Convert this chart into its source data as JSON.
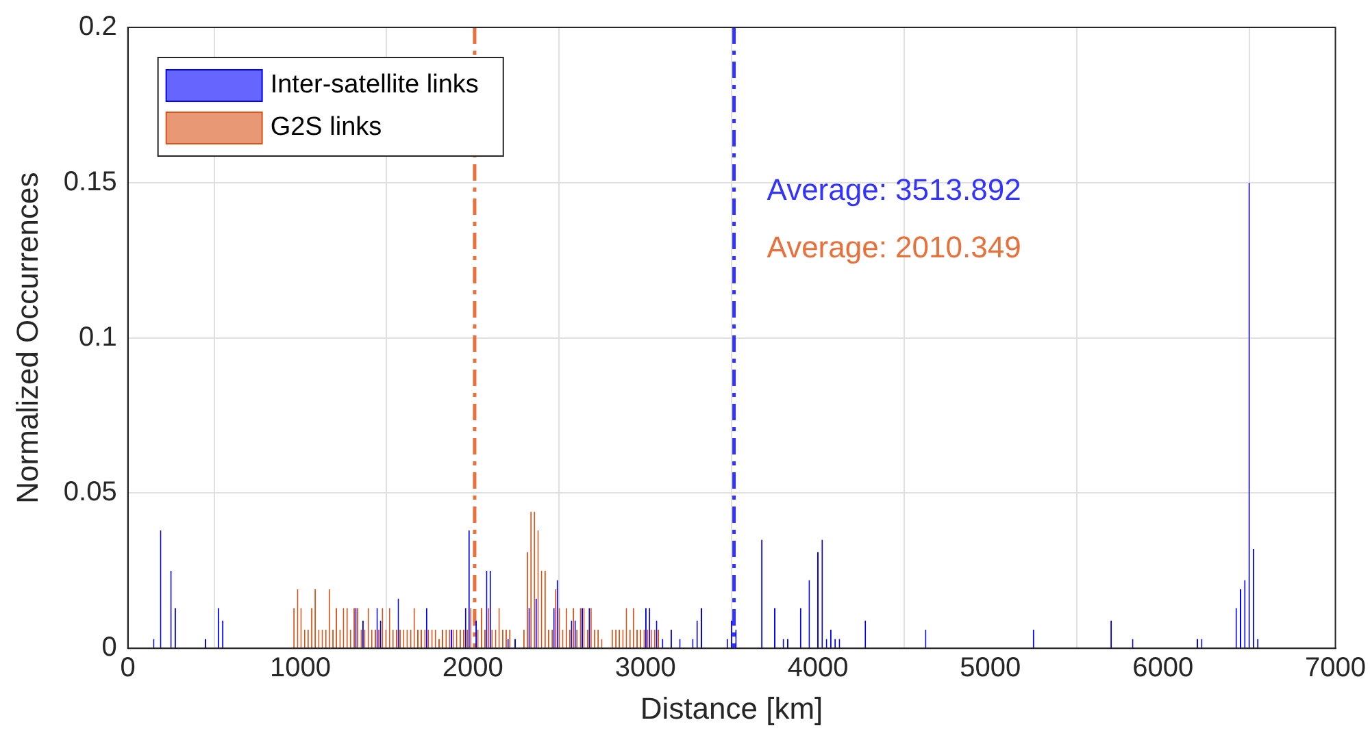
{
  "chart_data": {
    "type": "bar",
    "xlabel": "Distance [km]",
    "ylabel": "Normalized Occurrences",
    "xlim": [
      0,
      7000
    ],
    "xticks": [
      0,
      1000,
      2000,
      3000,
      4000,
      5000,
      6000,
      7000
    ],
    "ylim": [
      0,
      0.2
    ],
    "yticks": [
      0,
      0.05,
      0.1,
      0.15,
      0.2
    ],
    "grid": true,
    "legend": "top left",
    "series": [
      {
        "name": "Inter-satellite links",
        "color": "#0000ff",
        "x": [
          150,
          190,
          250,
          275,
          450,
          525,
          550,
          1322,
          1363,
          1445,
          1465,
          1568,
          1732,
          1876,
          1958,
          1978,
          2019,
          2080,
          2101,
          2204,
          2245,
          2326,
          2367,
          2470,
          2490,
          2572,
          2593,
          2634,
          2675,
          3003,
          3024,
          3065,
          3100,
          3150,
          3200,
          3275,
          3300,
          3325,
          3475,
          3500,
          3525,
          3675,
          3750,
          3800,
          3825,
          3900,
          3950,
          4000,
          4025,
          4050,
          4075,
          4100,
          4125,
          4275,
          4625,
          5250,
          5700,
          5825,
          6200,
          6225,
          6425,
          6450,
          6475,
          6500,
          6525,
          6550
        ],
        "values": [
          0.003,
          0.038,
          0.025,
          0.013,
          0.003,
          0.013,
          0.009,
          0.013,
          0.009,
          0.013,
          0.009,
          0.016,
          0.013,
          0.006,
          0.013,
          0.038,
          0.009,
          0.025,
          0.025,
          0.003,
          0.003,
          0.013,
          0.016,
          0.013,
          0.022,
          0.009,
          0.009,
          0.013,
          0.013,
          0.013,
          0.013,
          0.009,
          0.003,
          0.006,
          0.003,
          0.003,
          0.009,
          0.013,
          0.003,
          0.009,
          0.006,
          0.035,
          0.013,
          0.003,
          0.003,
          0.013,
          0.022,
          0.031,
          0.035,
          0.003,
          0.006,
          0.003,
          0.003,
          0.009,
          0.006,
          0.006,
          0.009,
          0.003,
          0.003,
          0.003,
          0.013,
          0.019,
          0.022,
          0.15,
          0.032,
          0.003
        ]
      },
      {
        "name": "G2S links",
        "color": "#d95319",
        "x": [
          963,
          984,
          1004,
          1025,
          1045,
          1066,
          1086,
          1107,
          1127,
          1148,
          1168,
          1189,
          1209,
          1230,
          1250,
          1271,
          1291,
          1312,
          1332,
          1353,
          1373,
          1394,
          1414,
          1435,
          1455,
          1476,
          1496,
          1517,
          1537,
          1558,
          1578,
          1599,
          1619,
          1640,
          1660,
          1681,
          1701,
          1722,
          1742,
          1763,
          1783,
          1804,
          1824,
          1845,
          1865,
          1886,
          1906,
          1927,
          1947,
          1968,
          1988,
          2009,
          2029,
          2050,
          2070,
          2091,
          2111,
          2132,
          2152,
          2173,
          2193,
          2214,
          2296,
          2316,
          2337,
          2357,
          2378,
          2398,
          2419,
          2439,
          2460,
          2480,
          2501,
          2521,
          2542,
          2562,
          2583,
          2603,
          2624,
          2644,
          2665,
          2685,
          2706,
          2726,
          2747,
          2808,
          2829,
          2849,
          2870,
          2890,
          2911,
          2931,
          2952,
          2972,
          2993,
          3013,
          3034,
          3054,
          3075
        ],
        "values": [
          0.013,
          0.019,
          0.013,
          0.006,
          0.006,
          0.013,
          0.019,
          0.006,
          0.006,
          0.006,
          0.019,
          0.006,
          0.013,
          0.006,
          0.013,
          0.013,
          0.006,
          0.013,
          0.013,
          0.006,
          0.006,
          0.013,
          0.006,
          0.006,
          0.006,
          0.013,
          0.006,
          0.013,
          0.006,
          0.006,
          0.006,
          0.006,
          0.006,
          0.006,
          0.013,
          0.006,
          0.006,
          0.006,
          0.006,
          0.006,
          0.006,
          0.003,
          0.006,
          0.006,
          0.006,
          0.006,
          0.006,
          0.006,
          0.006,
          0.006,
          0.013,
          null,
          0.006,
          0.013,
          0.006,
          0.013,
          0.006,
          0.006,
          0.013,
          0.006,
          0.006,
          0.006,
          0.006,
          0.031,
          0.044,
          0.044,
          0.038,
          0.025,
          0.025,
          0.006,
          0.006,
          0.019,
          0.013,
          0.006,
          0.013,
          0.006,
          0.013,
          0.006,
          0.013,
          0.013,
          0.006,
          0.013,
          0.006,
          0.006,
          0.003,
          0.006,
          0.006,
          0.006,
          0.006,
          0.013,
          0.006,
          0.013,
          0.006,
          0.006,
          0.006,
          0.006,
          0.006,
          0.006,
          0.006
        ]
      }
    ],
    "ref_lines": [
      {
        "axis": "x",
        "value": 3513.892,
        "label": "Average: 3513.892",
        "color": "#3333ff",
        "line_style": "dashed"
      },
      {
        "axis": "x",
        "value": 2010.349,
        "label": "Average: 2010.349",
        "color": "#e8703a",
        "line_style": "dashed"
      }
    ]
  }
}
